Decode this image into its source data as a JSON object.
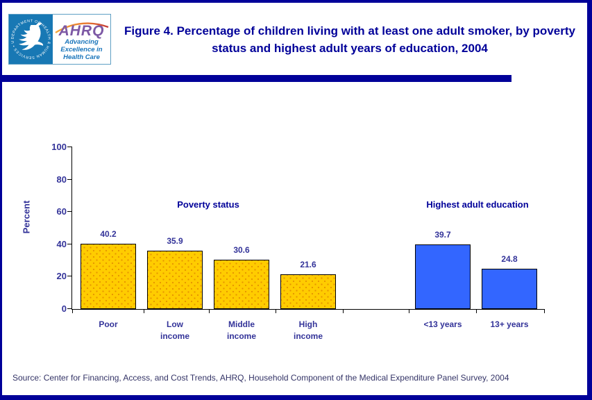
{
  "header": {
    "logo": {
      "hhs_seal_text": "DEPARTMENT OF HEALTH & HUMAN SERVICES • USA",
      "ahrq_acronym": "AHRQ",
      "tagline_lines": [
        "Advancing",
        "Excellence in",
        "Health Care"
      ]
    },
    "title": "Figure 4. Percentage of children living with at least one adult smoker, by poverty status and highest adult years of education, 2004"
  },
  "chart_data": {
    "type": "bar",
    "title": "Figure 4. Percentage of children living with at least one adult smoker, by poverty status and highest adult years of education, 2004",
    "xlabel": "",
    "ylabel": "Percent",
    "ylim": [
      0,
      100
    ],
    "yticks": [
      0,
      20,
      40,
      60,
      80,
      100
    ],
    "grid": false,
    "legend": "none",
    "groups": [
      {
        "label": "Poverty status",
        "bar_color": "#FFCC00",
        "bars": [
          {
            "category": "Poor",
            "category_line1": "Poor",
            "category_line2": "",
            "value": 40.2
          },
          {
            "category": "Low income",
            "category_line1": "Low",
            "category_line2": "income",
            "value": 35.9
          },
          {
            "category": "Middle income",
            "category_line1": "Middle",
            "category_line2": "income",
            "value": 30.6
          },
          {
            "category": "High income",
            "category_line1": "High",
            "category_line2": "income",
            "value": 21.6
          }
        ]
      },
      {
        "label": "Highest adult education",
        "bar_color": "#3366FF",
        "bars": [
          {
            "category": "<13 years",
            "category_line1": "<13 years",
            "category_line2": "",
            "value": 39.7
          },
          {
            "category": "13+ years",
            "category_line1": "13+ years",
            "category_line2": "",
            "value": 24.8
          }
        ]
      }
    ]
  },
  "source": "Source: Center for Financing, Access, and Cost Trends, AHRQ, Household Component of the Medical Expenditure Panel Survey, 2004",
  "colors": {
    "frame_navy": "#000099",
    "title_navy": "#000099",
    "chart_text_navy": "#333399",
    "source_text": "#333366",
    "bar_yellow": "#FFCC00",
    "bar_yellow_dot": "#E69500",
    "bar_blue": "#3366FF",
    "hhs_blue": "#1878B4",
    "ahrq_purple": "#7D59A5",
    "tagline_blue": "#1A75BB"
  }
}
